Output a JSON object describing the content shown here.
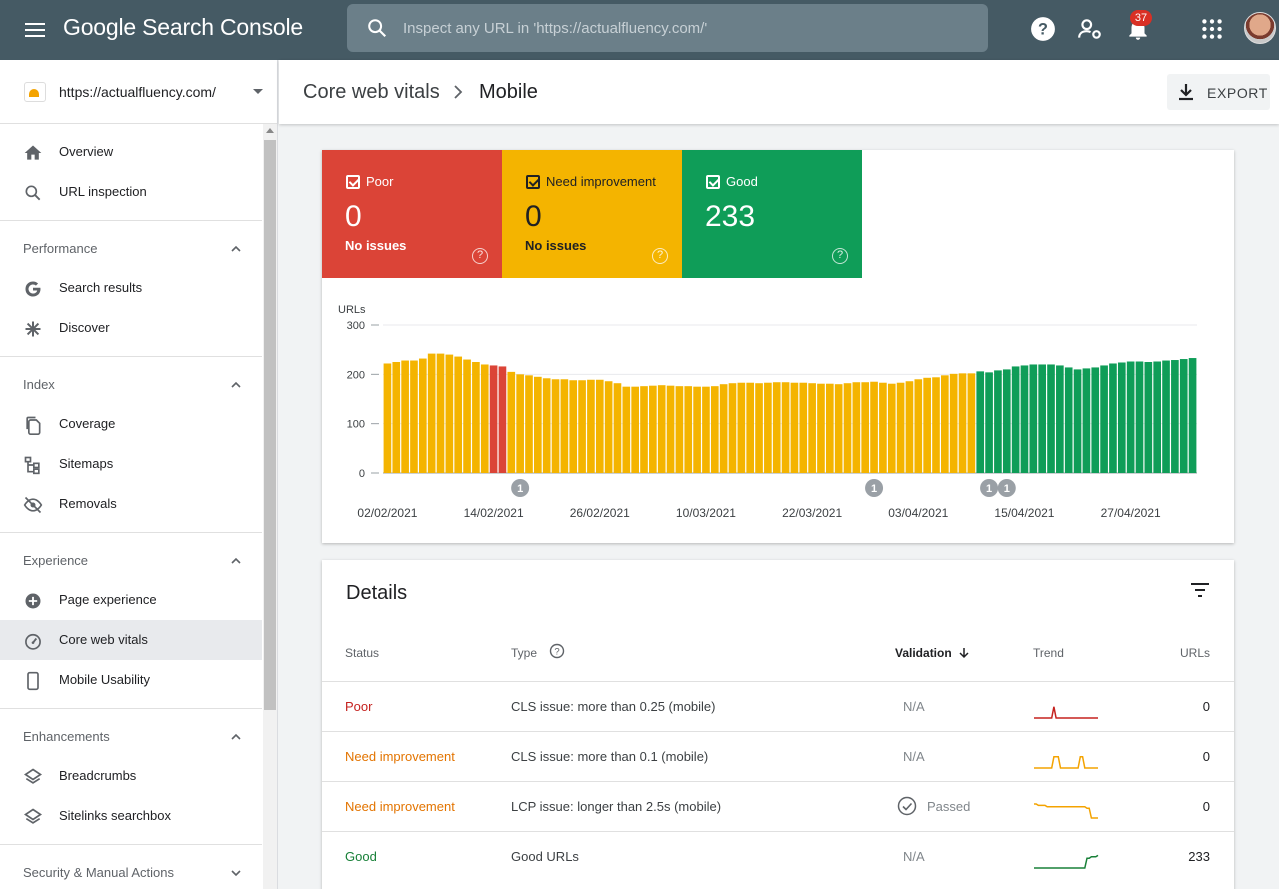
{
  "app": {
    "title": "Google Search Console"
  },
  "search": {
    "placeholder": "Inspect any URL in 'https://actualfluency.com/'"
  },
  "notifications": {
    "count": "37"
  },
  "property": {
    "url": "https://actualfluency.com/"
  },
  "sidebar": {
    "top_items": [
      {
        "label": "Overview",
        "icon": "home-icon"
      },
      {
        "label": "URL inspection",
        "icon": "search-icon"
      }
    ],
    "sections": [
      {
        "title": "Performance",
        "items": [
          {
            "label": "Search results",
            "icon": "google-g-icon"
          },
          {
            "label": "Discover",
            "icon": "asterisk-icon"
          }
        ]
      },
      {
        "title": "Index",
        "items": [
          {
            "label": "Coverage",
            "icon": "file-copy-icon"
          },
          {
            "label": "Sitemaps",
            "icon": "sitemap-icon"
          },
          {
            "label": "Removals",
            "icon": "eye-off-icon"
          }
        ]
      },
      {
        "title": "Experience",
        "items": [
          {
            "label": "Page experience",
            "icon": "plus-circle-icon"
          },
          {
            "label": "Core web vitals",
            "icon": "speedometer-icon",
            "active": true
          },
          {
            "label": "Mobile Usability",
            "icon": "phone-icon"
          }
        ]
      },
      {
        "title": "Enhancements",
        "items": [
          {
            "label": "Breadcrumbs",
            "icon": "layers-icon"
          },
          {
            "label": "Sitelinks searchbox",
            "icon": "layers-icon"
          }
        ]
      },
      {
        "title": "Security & Manual Actions",
        "items": []
      }
    ]
  },
  "header": {
    "crumb_parent": "Core web vitals",
    "crumb_current": "Mobile",
    "export_label": "EXPORT"
  },
  "summary": {
    "poor": {
      "label": "Poor",
      "value": "0",
      "sub": "No issues",
      "color": "#db4437"
    },
    "need": {
      "label": "Need improvement",
      "value": "0",
      "sub": "No issues",
      "color": "#f4b400"
    },
    "good": {
      "label": "Good",
      "value": "233",
      "color": "#0f9d58"
    },
    "help_glyph": "?"
  },
  "chart_data": {
    "type": "bar",
    "stacked": true,
    "ylabel": "URLs",
    "ylim": [
      0,
      300
    ],
    "yticks": [
      0,
      100,
      200,
      300
    ],
    "xtick_labels": [
      "02/02/2021",
      "14/02/2021",
      "26/02/2021",
      "10/03/2021",
      "22/03/2021",
      "03/04/2021",
      "15/04/2021",
      "27/04/2021"
    ],
    "xtick_day_indices": [
      0,
      12,
      24,
      36,
      48,
      60,
      72,
      84
    ],
    "annotations": [
      {
        "day_index": 15,
        "label": "1"
      },
      {
        "day_index": 55,
        "label": "1"
      },
      {
        "day_index": 68,
        "label": "1"
      },
      {
        "day_index": 70,
        "label": "1"
      }
    ],
    "colors": {
      "poor": "#db4437",
      "need": "#f4b400",
      "good": "#0f9d58"
    },
    "series": [
      {
        "name": "Poor",
        "values": [
          0,
          0,
          0,
          0,
          0,
          0,
          0,
          0,
          0,
          0,
          0,
          0,
          218,
          216,
          0,
          0,
          0,
          0,
          0,
          0,
          0,
          0,
          0,
          0,
          0,
          0,
          0,
          0,
          0,
          0,
          0,
          0,
          0,
          0,
          0,
          0,
          0,
          0,
          0,
          0,
          0,
          0,
          0,
          0,
          0,
          0,
          0,
          0,
          0,
          0,
          0,
          0,
          0,
          0,
          0,
          0,
          0,
          0,
          0,
          0,
          0,
          0,
          0,
          0,
          0,
          0,
          0,
          0,
          0,
          0,
          0,
          0,
          0,
          0,
          0,
          0,
          0,
          0,
          0,
          0,
          0,
          0,
          0,
          0,
          0,
          0,
          0,
          0,
          0,
          0,
          0,
          0
        ]
      },
      {
        "name": "Need improvement",
        "values": [
          222,
          225,
          228,
          228,
          232,
          242,
          242,
          240,
          236,
          230,
          225,
          220,
          0,
          0,
          205,
          200,
          198,
          195,
          192,
          190,
          190,
          188,
          188,
          189,
          189,
          186,
          182,
          175,
          175,
          176,
          177,
          178,
          177,
          176,
          176,
          175,
          175,
          176,
          180,
          182,
          183,
          183,
          182,
          183,
          184,
          184,
          183,
          183,
          182,
          181,
          181,
          180,
          182,
          184,
          184,
          185,
          183,
          181,
          183,
          186,
          190,
          193,
          194,
          198,
          201,
          202,
          202,
          0,
          0,
          0,
          0,
          0,
          0,
          0,
          0,
          0,
          0,
          0,
          0,
          0,
          0,
          0,
          0,
          0,
          0,
          0,
          0,
          0,
          0,
          0,
          0,
          0
        ]
      },
      {
        "name": "Good",
        "values": [
          0,
          0,
          0,
          0,
          0,
          0,
          0,
          0,
          0,
          0,
          0,
          0,
          0,
          0,
          0,
          0,
          0,
          0,
          0,
          0,
          0,
          0,
          0,
          0,
          0,
          0,
          0,
          0,
          0,
          0,
          0,
          0,
          0,
          0,
          0,
          0,
          0,
          0,
          0,
          0,
          0,
          0,
          0,
          0,
          0,
          0,
          0,
          0,
          0,
          0,
          0,
          0,
          0,
          0,
          0,
          0,
          0,
          0,
          0,
          0,
          0,
          0,
          0,
          0,
          0,
          0,
          0,
          206,
          204,
          208,
          210,
          216,
          218,
          220,
          220,
          220,
          218,
          214,
          210,
          212,
          214,
          218,
          222,
          224,
          226,
          226,
          225,
          226,
          228,
          229,
          231,
          233
        ]
      }
    ]
  },
  "details": {
    "title": "Details",
    "columns": {
      "status": "Status",
      "type": "Type",
      "validation": "Validation",
      "trend": "Trend",
      "urls": "URLs"
    },
    "help_glyph": "?",
    "rows": [
      {
        "status": "Poor",
        "status_color": "#c5221f",
        "type": "CLS issue: more than 0.25 (mobile)",
        "validation": "N/A",
        "trend_color": "#c5221f",
        "trend": [
          0,
          0,
          0,
          0,
          0,
          0,
          0,
          0,
          0,
          8,
          0,
          0,
          0,
          0,
          0,
          0,
          0,
          0,
          0,
          0,
          0,
          0,
          0,
          0,
          0,
          0,
          0,
          0,
          0,
          0
        ],
        "urls": "0"
      },
      {
        "status": "Need improvement",
        "status_color": "#e37400",
        "type": "CLS issue: more than 0.1 (mobile)",
        "validation": "N/A",
        "trend_color": "#f4a300",
        "trend": [
          0,
          0,
          0,
          0,
          0,
          0,
          0,
          0,
          0,
          8,
          8,
          8,
          0,
          0,
          0,
          0,
          0,
          0,
          0,
          0,
          0,
          8,
          8,
          0,
          0,
          0,
          0,
          0,
          0,
          0
        ],
        "urls": "0"
      },
      {
        "status": "Need improvement",
        "status_color": "#e37400",
        "type": "LCP issue: longer than 2.5s (mobile)",
        "validation": "Passed",
        "validation_icon": "check-circle-icon",
        "trend_color": "#f4a300",
        "trend": [
          10,
          10,
          9,
          9,
          9,
          9,
          8,
          8,
          8,
          8,
          8,
          8,
          8,
          8,
          8,
          8,
          8,
          8,
          8,
          8,
          8,
          8,
          8,
          8,
          7,
          7,
          0,
          0,
          0,
          0
        ],
        "urls": "0"
      },
      {
        "status": "Good",
        "status_color": "#188038",
        "type": "Good URLs",
        "validation": "N/A",
        "trend_color": "#188038",
        "trend": [
          0,
          0,
          0,
          0,
          0,
          0,
          0,
          0,
          0,
          0,
          0,
          0,
          0,
          0,
          0,
          0,
          0,
          0,
          0,
          0,
          0,
          0,
          0,
          0,
          7,
          7,
          8,
          8,
          8,
          9
        ],
        "urls": "233"
      }
    ]
  }
}
